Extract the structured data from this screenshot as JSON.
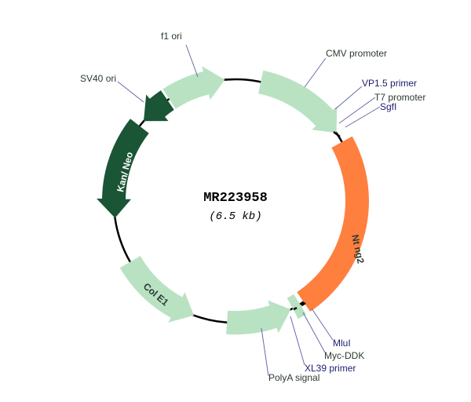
{
  "plasmid": {
    "name": "MR223958",
    "size": "(6.5 kb)"
  },
  "colors": {
    "backbone": "#000000",
    "light_feature": "#b9e2c3",
    "dark_feature": "#1a5535",
    "insert": "#ff7f3f",
    "label_dark": "#2b3b2e",
    "label_primer": "#1c1c6e"
  },
  "features": [
    {
      "id": "f1",
      "label": "f1 ori",
      "inner_label": "",
      "direction": "clockwise"
    },
    {
      "id": "cmv",
      "label": "CMV promoter",
      "inner_label": "",
      "direction": "clockwise"
    },
    {
      "id": "insert",
      "label": "",
      "inner_label": "Nt ng2",
      "direction": "none"
    },
    {
      "id": "mycddk",
      "label": "Myc-DDK",
      "inner_label": "",
      "direction": "none"
    },
    {
      "id": "polya",
      "label": "PolyA signal",
      "inner_label": "",
      "direction": "counterclockwise"
    },
    {
      "id": "cole1",
      "label": "",
      "inner_label": "Col E1",
      "direction": "counterclockwise"
    },
    {
      "id": "kan",
      "label": "",
      "inner_label": "Kan/ Neo",
      "direction": "counterclockwise"
    },
    {
      "id": "sv40",
      "label": "SV40 ori",
      "inner_label": "",
      "direction": "counterclockwise"
    }
  ],
  "sites": [
    {
      "label": "VP1.5 primer",
      "type": "primer"
    },
    {
      "label": "T7 promoter",
      "type": "feature"
    },
    {
      "label": "SgfI",
      "type": "primer"
    },
    {
      "label": "MluI",
      "type": "primer"
    },
    {
      "label": "XL39 primer",
      "type": "primer"
    }
  ]
}
